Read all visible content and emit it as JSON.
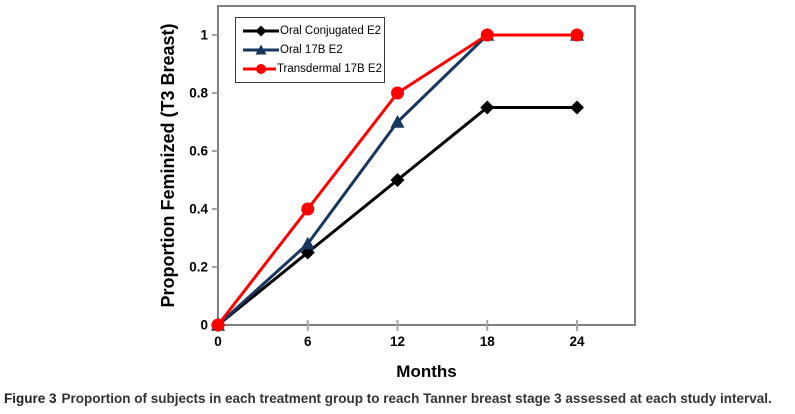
{
  "chart_data": {
    "type": "line",
    "x": [
      0,
      6,
      12,
      18,
      24
    ],
    "series": [
      {
        "name": "Oral Conjugated E2",
        "color": "#000000",
        "marker": "diamond",
        "values": [
          0,
          0.25,
          0.5,
          0.75,
          0.75
        ]
      },
      {
        "name": "Oral 17B E2",
        "color": "#17375E",
        "marker": "triangle",
        "values": [
          0,
          0.28,
          0.7,
          1,
          1
        ]
      },
      {
        "name": "Transdermal 17B E2",
        "color": "#FF0000",
        "marker": "circle",
        "values": [
          0,
          0.4,
          0.8,
          1,
          1
        ]
      }
    ],
    "title": "",
    "xlabel": "Months",
    "ylabel": "Proportion Feminized (T3 Breast)",
    "xlim": [
      0,
      28
    ],
    "ylim": [
      0,
      1.1
    ],
    "xticks": [
      0,
      6,
      12,
      18,
      24
    ],
    "yticks": [
      0,
      0.2,
      0.4,
      0.6,
      0.8,
      1
    ],
    "grid": false,
    "legend_position": "top-left",
    "colors": {
      "axis_border": "#7F7F7F",
      "tick_mark": "#A6A6A6",
      "plot_background": "#FFFFFF"
    }
  },
  "caption": {
    "label": "Figure 3",
    "text": "Proportion of subjects in each treatment group to reach Tanner breast stage 3 assessed at each study interval."
  }
}
